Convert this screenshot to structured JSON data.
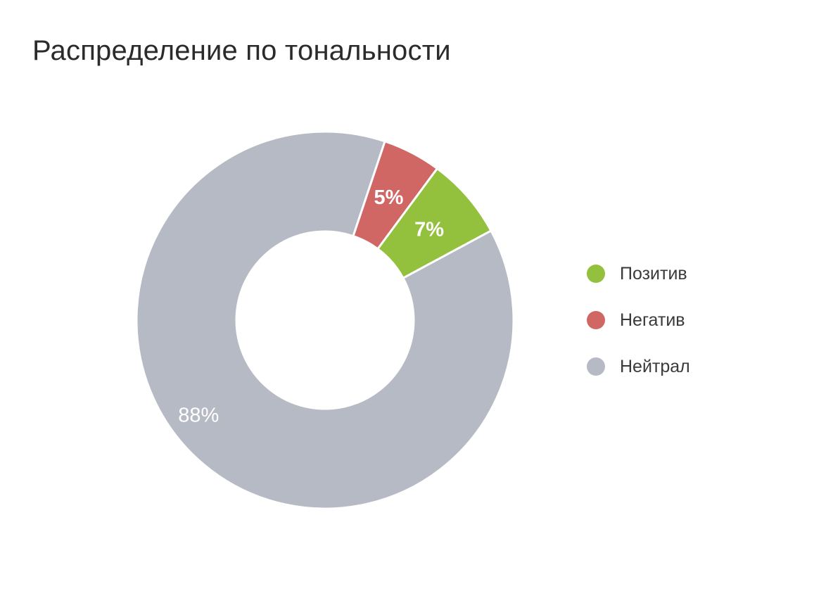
{
  "title": "Распределение по тональности",
  "chart_data": {
    "type": "pie",
    "variant": "donut",
    "title": "Распределение по тональности",
    "legend_position": "right",
    "slices": [
      {
        "name": "Позитив",
        "value": 7,
        "label": "7%",
        "color": "#93c13e"
      },
      {
        "name": "Негатив",
        "value": 5,
        "label": "5%",
        "color": "#d06765"
      },
      {
        "name": "Нейтрал",
        "value": 88,
        "label": "88%",
        "color": "#b6bac4"
      }
    ]
  }
}
